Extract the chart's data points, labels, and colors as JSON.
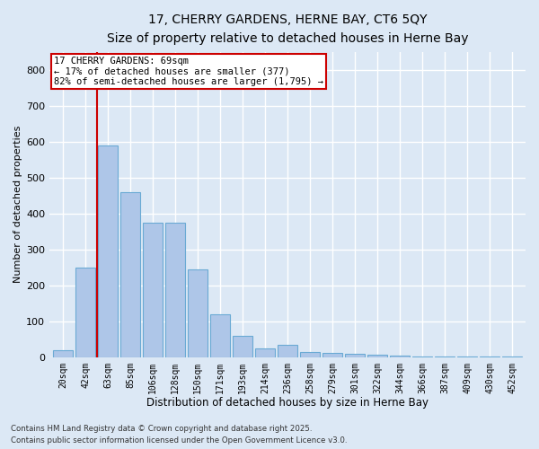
{
  "title1": "17, CHERRY GARDENS, HERNE BAY, CT6 5QY",
  "title2": "Size of property relative to detached houses in Herne Bay",
  "xlabel": "Distribution of detached houses by size in Herne Bay",
  "ylabel": "Number of detached properties",
  "bar_labels": [
    "20sqm",
    "42sqm",
    "63sqm",
    "85sqm",
    "106sqm",
    "128sqm",
    "150sqm",
    "171sqm",
    "193sqm",
    "214sqm",
    "236sqm",
    "258sqm",
    "279sqm",
    "301sqm",
    "322sqm",
    "344sqm",
    "366sqm",
    "387sqm",
    "409sqm",
    "430sqm",
    "452sqm"
  ],
  "bar_values": [
    20,
    250,
    590,
    460,
    375,
    375,
    245,
    120,
    60,
    25,
    35,
    15,
    12,
    10,
    8,
    5,
    3,
    2,
    2,
    1,
    1
  ],
  "bar_color": "#aec6e8",
  "bar_edge_color": "#6aaad4",
  "background_color": "#dce8f5",
  "grid_color": "#ffffff",
  "ylim": [
    0,
    850
  ],
  "yticks": [
    0,
    100,
    200,
    300,
    400,
    500,
    600,
    700,
    800
  ],
  "annotation_text": "17 CHERRY GARDENS: 69sqm\n← 17% of detached houses are smaller (377)\n82% of semi-detached houses are larger (1,795) →",
  "vline_x": 1.5,
  "annotation_box_color": "#ffffff",
  "annotation_box_edge_color": "#cc0000",
  "footer1": "Contains HM Land Registry data © Crown copyright and database right 2025.",
  "footer2": "Contains public sector information licensed under the Open Government Licence v3.0."
}
